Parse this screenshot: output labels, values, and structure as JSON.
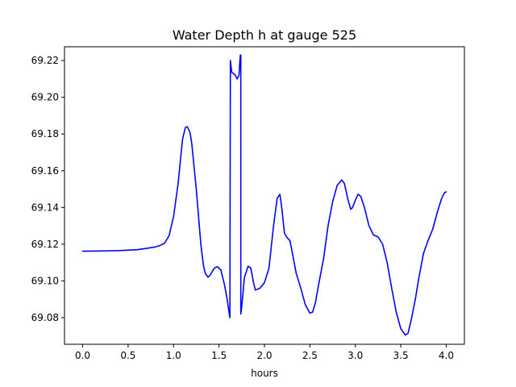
{
  "chart_data": {
    "type": "line",
    "title": "Water Depth h at gauge 525",
    "xlabel": "hours",
    "ylabel": "",
    "xlim": [
      -0.2,
      4.2
    ],
    "ylim": [
      69.0655,
      69.2275
    ],
    "xticks": [
      0.0,
      0.5,
      1.0,
      1.5,
      2.0,
      2.5,
      3.0,
      3.5,
      4.0
    ],
    "xtick_labels": [
      "0.0",
      "0.5",
      "1.0",
      "1.5",
      "2.0",
      "2.5",
      "3.0",
      "3.5",
      "4.0"
    ],
    "yticks": [
      69.08,
      69.1,
      69.12,
      69.14,
      69.16,
      69.18,
      69.2,
      69.22
    ],
    "ytick_labels": [
      "69.08",
      "69.10",
      "69.12",
      "69.14",
      "69.16",
      "69.18",
      "69.20",
      "69.22"
    ],
    "grid": false,
    "legend": "none",
    "series": [
      {
        "color": "#0000ff",
        "x": [
          0.0,
          0.2,
          0.4,
          0.6,
          0.7,
          0.8,
          0.85,
          0.9,
          0.95,
          1.0,
          1.05,
          1.08,
          1.1,
          1.13,
          1.15,
          1.18,
          1.2,
          1.25,
          1.3,
          1.33,
          1.35,
          1.38,
          1.4,
          1.45,
          1.48,
          1.52,
          1.56,
          1.59,
          1.61,
          1.62,
          1.625,
          1.63,
          1.64,
          1.66,
          1.68,
          1.7,
          1.72,
          1.73,
          1.735,
          1.74,
          1.74,
          1.75,
          1.78,
          1.82,
          1.85,
          1.88,
          1.9,
          1.95,
          2.0,
          2.05,
          2.1,
          2.14,
          2.17,
          2.19,
          2.22,
          2.25,
          2.28,
          2.3,
          2.35,
          2.4,
          2.45,
          2.5,
          2.53,
          2.56,
          2.6,
          2.65,
          2.7,
          2.75,
          2.8,
          2.85,
          2.88,
          2.92,
          2.95,
          2.97,
          3.0,
          3.03,
          3.06,
          3.1,
          3.15,
          3.2,
          3.25,
          3.3,
          3.35,
          3.4,
          3.45,
          3.5,
          3.55,
          3.58,
          3.62,
          3.66,
          3.7,
          3.75,
          3.8,
          3.85,
          3.9,
          3.95,
          3.98,
          4.0
        ],
        "y": [
          69.1162,
          69.1163,
          69.1165,
          69.117,
          69.1177,
          69.1185,
          69.1193,
          69.1205,
          69.1245,
          69.135,
          69.153,
          69.168,
          69.1775,
          69.1835,
          69.184,
          69.181,
          69.175,
          69.15,
          69.12,
          69.108,
          69.104,
          69.102,
          69.103,
          69.107,
          69.1078,
          69.106,
          69.098,
          69.09,
          69.083,
          69.08,
          69.22,
          69.218,
          69.2135,
          69.213,
          69.212,
          69.21,
          69.212,
          69.22,
          69.223,
          69.223,
          69.082,
          69.086,
          69.102,
          69.108,
          69.107,
          69.099,
          69.095,
          69.096,
          69.099,
          69.107,
          69.13,
          69.145,
          69.1472,
          69.14,
          69.126,
          69.1235,
          69.122,
          69.117,
          69.104,
          69.096,
          69.087,
          69.0825,
          69.083,
          69.088,
          69.099,
          69.112,
          69.13,
          69.143,
          69.152,
          69.155,
          69.153,
          69.144,
          69.139,
          69.14,
          69.144,
          69.1472,
          69.146,
          69.14,
          69.13,
          69.125,
          69.124,
          69.12,
          69.11,
          69.096,
          69.083,
          69.074,
          69.0705,
          69.0715,
          69.08,
          69.09,
          69.102,
          69.115,
          69.122,
          69.128,
          69.137,
          69.145,
          69.148,
          69.1485
        ]
      }
    ]
  }
}
